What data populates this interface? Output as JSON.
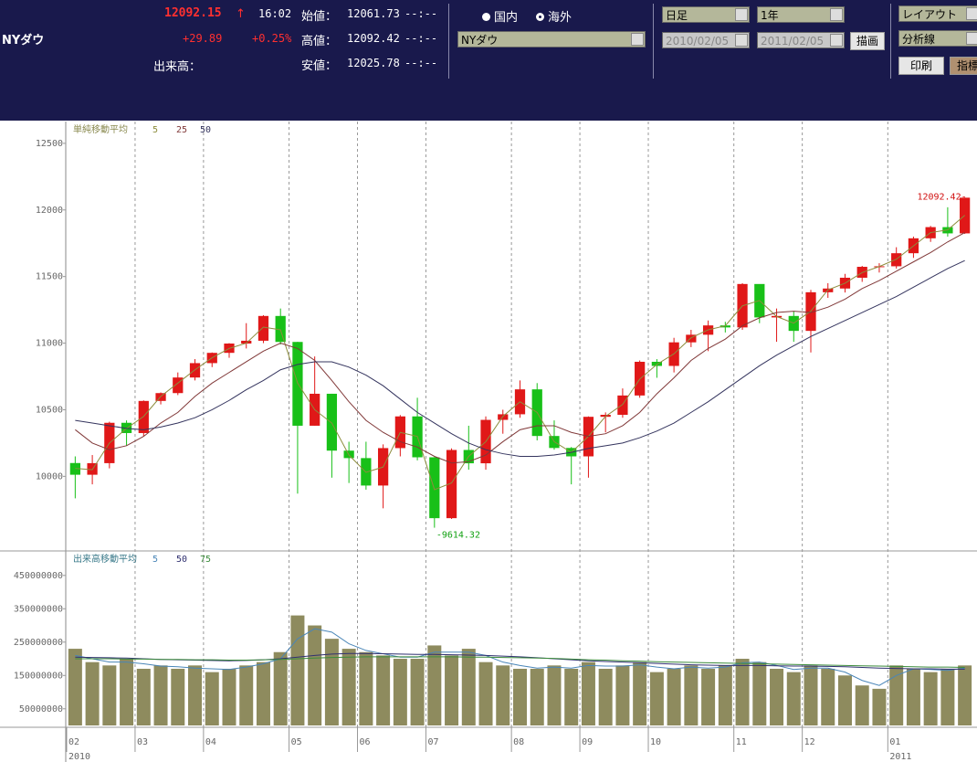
{
  "header": {
    "symbol": "NYダウ",
    "price": "12092.15",
    "arrow": "↑",
    "time": "16:02",
    "change": "+29.89",
    "change_pct": "+0.25%",
    "volume_label": "出来高：",
    "ohlc": [
      {
        "label": "始値：",
        "value": "12061.73",
        "time": "--:--"
      },
      {
        "label": "高値：",
        "value": "12092.42",
        "time": "--:--"
      },
      {
        "label": "安値：",
        "value": "12025.78",
        "time": "--:--"
      }
    ]
  },
  "controls": {
    "radio_domestic": "国内",
    "radio_overseas": "海外",
    "index_select": "NYダウ",
    "period_select": "日足",
    "range_select": "1年",
    "date_from": "2010/02/05",
    "date_to": "2011/02/05",
    "draw_button": "描画",
    "layout_select": "レイアウト",
    "analysis_select": "分析線",
    "print_button": "印刷",
    "indicator_button": "指標"
  },
  "chart_data": [
    {
      "type": "candlestick",
      "legend_title": "単純移動平均",
      "up_color": "#e01818",
      "down_color": "#18c018",
      "high_label": "12092.42-",
      "low_label": "-9614.32",
      "categories": [
        "02",
        null,
        null,
        null,
        "03",
        null,
        null,
        null,
        "04",
        null,
        null,
        null,
        null,
        "05",
        null,
        null,
        null,
        "06",
        null,
        null,
        null,
        "07",
        null,
        null,
        null,
        null,
        "08",
        null,
        null,
        null,
        "09",
        null,
        null,
        null,
        "10",
        null,
        null,
        null,
        null,
        "11",
        null,
        null,
        null,
        "12",
        null,
        null,
        null,
        null,
        "01",
        null,
        null,
        null,
        null
      ],
      "years": [
        "2010",
        null,
        null,
        null,
        null,
        null,
        null,
        null,
        null,
        null,
        null,
        null,
        null,
        null,
        null,
        null,
        null,
        null,
        null,
        null,
        null,
        null,
        null,
        null,
        null,
        null,
        null,
        null,
        null,
        null,
        null,
        null,
        null,
        null,
        null,
        null,
        null,
        null,
        null,
        null,
        null,
        null,
        null,
        null,
        null,
        null,
        null,
        null,
        "2011",
        null,
        null,
        null,
        null
      ],
      "open": [
        10100,
        10012,
        10099,
        10402,
        10325,
        10566,
        10625,
        10742,
        10850,
        10927,
        10997,
        11018,
        11204,
        11009,
        10380,
        10620,
        10193,
        10137,
        9931,
        10212,
        10450,
        10143,
        9686,
        10198,
        10098,
        10424,
        10466,
        10653,
        10303,
        10213,
        10150,
        10447,
        10462,
        10607,
        10860,
        10829,
        11006,
        11063,
        11133,
        11118,
        11444,
        11193,
        11204,
        11092,
        11382,
        11410,
        11491,
        11573,
        11577,
        11675,
        11787,
        11871,
        11824
      ],
      "high": [
        10150,
        10160,
        10410,
        10420,
        10570,
        10630,
        10780,
        10880,
        10930,
        11000,
        11150,
        11210,
        11260,
        11010,
        10900,
        10620,
        10260,
        10260,
        10240,
        10460,
        10590,
        10145,
        10210,
        10380,
        10450,
        10500,
        10720,
        10700,
        10420,
        10220,
        10450,
        10480,
        10660,
        10870,
        10880,
        11040,
        11100,
        11170,
        11160,
        11450,
        11440,
        11260,
        11240,
        11400,
        11450,
        11520,
        11580,
        11600,
        11720,
        11800,
        11880,
        12020,
        12092.42
      ],
      "low": [
        9835,
        9940,
        10060,
        10230,
        10300,
        10540,
        10610,
        10720,
        10820,
        10890,
        10960,
        11000,
        10990,
        9870,
        10380,
        9990,
        9950,
        9900,
        9760,
        10150,
        10120,
        9614.32,
        9680,
        10050,
        10050,
        10320,
        10440,
        10270,
        10200,
        9940,
        9990,
        10330,
        10440,
        10590,
        10740,
        10780,
        10970,
        10940,
        11080,
        11100,
        11150,
        11010,
        11010,
        10930,
        11340,
        11380,
        11460,
        11530,
        11560,
        11640,
        11760,
        11800,
        11820
      ],
      "close": [
        10012,
        10099,
        10402,
        10325,
        10566,
        10625,
        10742,
        10850,
        10927,
        10997,
        11018,
        11204,
        11009,
        10380,
        10620,
        10193,
        10137,
        9931,
        10212,
        10450,
        10143,
        9686,
        10198,
        10098,
        10424,
        10466,
        10653,
        10303,
        10213,
        10150,
        10447,
        10462,
        10607,
        10860,
        10829,
        11006,
        11063,
        11133,
        11118,
        11444,
        11193,
        11204,
        11092,
        11382,
        11410,
        11491,
        11573,
        11577,
        11675,
        11787,
        11871,
        11824,
        12092
      ],
      "series": [
        {
          "name": "5",
          "color": "#8c8c3c",
          "values": [
            10060,
            10050,
            10250,
            10360,
            10450,
            10600,
            10700,
            10800,
            10890,
            10960,
            11000,
            11120,
            11100,
            10700,
            10500,
            10400,
            10160,
            10030,
            10070,
            10330,
            10300,
            9900,
            9950,
            10150,
            10260,
            10450,
            10560,
            10480,
            10260,
            10180,
            10300,
            10450,
            10540,
            10730,
            10840,
            10920,
            11040,
            11100,
            11130,
            11280,
            11320,
            11200,
            11150,
            11240,
            11400,
            11450,
            11530,
            11575,
            11630,
            11730,
            11830,
            11850,
            11960
          ]
        },
        {
          "name": "25",
          "color": "#803838",
          "values": [
            10350,
            10250,
            10200,
            10230,
            10300,
            10400,
            10480,
            10600,
            10700,
            10780,
            10860,
            10940,
            11000,
            10960,
            10870,
            10720,
            10560,
            10420,
            10330,
            10260,
            10220,
            10150,
            10100,
            10110,
            10160,
            10260,
            10350,
            10380,
            10380,
            10330,
            10300,
            10320,
            10380,
            10480,
            10620,
            10740,
            10870,
            10960,
            11030,
            11130,
            11190,
            11230,
            11240,
            11230,
            11270,
            11330,
            11410,
            11470,
            11540,
            11610,
            11680,
            11760,
            11830
          ]
        },
        {
          "name": "50",
          "color": "#34345e",
          "values": [
            10420,
            10400,
            10380,
            10360,
            10350,
            10370,
            10400,
            10440,
            10500,
            10570,
            10650,
            10720,
            10800,
            10840,
            10860,
            10860,
            10820,
            10760,
            10680,
            10580,
            10480,
            10400,
            10320,
            10250,
            10200,
            10170,
            10150,
            10150,
            10160,
            10180,
            10210,
            10230,
            10250,
            10290,
            10340,
            10400,
            10480,
            10560,
            10650,
            10740,
            10830,
            10910,
            10980,
            11050,
            11110,
            11170,
            11230,
            11290,
            11350,
            11420,
            11490,
            11560,
            11620
          ]
        }
      ],
      "ylim": [
        9440,
        12650
      ],
      "yticks": [
        10000,
        10500,
        11000,
        11500,
        12000,
        12500
      ]
    },
    {
      "type": "bar",
      "legend_title": "出来高移動平均",
      "color": "#8e8b5e",
      "values": [
        230000000.0,
        190000000.0,
        180000000.0,
        200000000.0,
        170000000.0,
        180000000.0,
        170000000.0,
        180000000.0,
        160000000.0,
        170000000.0,
        180000000.0,
        190000000.0,
        220000000.0,
        330000000.0,
        300000000.0,
        260000000.0,
        230000000.0,
        220000000.0,
        210000000.0,
        200000000.0,
        200000000.0,
        240000000.0,
        210000000.0,
        230000000.0,
        190000000.0,
        180000000.0,
        170000000.0,
        170000000.0,
        180000000.0,
        170000000.0,
        190000000.0,
        170000000.0,
        180000000.0,
        190000000.0,
        160000000.0,
        170000000.0,
        180000000.0,
        170000000.0,
        180000000.0,
        200000000.0,
        190000000.0,
        170000000.0,
        160000000.0,
        180000000.0,
        170000000.0,
        150000000.0,
        120000000.0,
        110000000.0,
        180000000.0,
        170000000.0,
        160000000.0,
        170000000.0,
        180000000.0
      ],
      "series": [
        {
          "name": "5",
          "color": "#4a86b8",
          "values": [
            210000000.0,
            200000000.0,
            190000000.0,
            190000000.0,
            185000000.0,
            178000000.0,
            176000000.0,
            172000000.0,
            170000000.0,
            168000000.0,
            175000000.0,
            185000000.0,
            200000000.0,
            260000000.0,
            290000000.0,
            280000000.0,
            245000000.0,
            225000000.0,
            215000000.0,
            205000000.0,
            205000000.0,
            220000000.0,
            220000000.0,
            220000000.0,
            210000000.0,
            190000000.0,
            180000000.0,
            172000000.0,
            175000000.0,
            172000000.0,
            180000000.0,
            178000000.0,
            178000000.0,
            182000000.0,
            175000000.0,
            170000000.0,
            175000000.0,
            172000000.0,
            175000000.0,
            188000000.0,
            190000000.0,
            180000000.0,
            168000000.0,
            172000000.0,
            172000000.0,
            160000000.0,
            135000000.0,
            120000000.0,
            150000000.0,
            170000000.0,
            168000000.0,
            165000000.0,
            172000000.0
          ]
        },
        {
          "name": "50",
          "color": "#303070",
          "values": [
            205000000.0,
            204000000.0,
            203000000.0,
            202000000.0,
            200000000.0,
            198000000.0,
            197000000.0,
            196000000.0,
            195000000.0,
            194000000.0,
            195000000.0,
            197000000.0,
            200000000.0,
            205000000.0,
            210000000.0,
            214000000.0,
            216000000.0,
            216000000.0,
            215000000.0,
            214000000.0,
            213000000.0,
            213000000.0,
            212000000.0,
            211000000.0,
            210000000.0,
            208000000.0,
            206000000.0,
            203000000.0,
            200000000.0,
            197000000.0,
            194000000.0,
            192000000.0,
            190000000.0,
            188000000.0,
            186000000.0,
            184000000.0,
            182000000.0,
            181000000.0,
            180000000.0,
            180000000.0,
            180000000.0,
            179000000.0,
            178000000.0,
            178000000.0,
            177000000.0,
            176000000.0,
            174000000.0,
            172000000.0,
            171000000.0,
            170000000.0,
            170000000.0,
            169000000.0,
            169000000.0
          ]
        },
        {
          "name": "75",
          "color": "#3c8c3c",
          "values": [
            200000000.0,
            200000000.0,
            200000000.0,
            199000000.0,
            199000000.0,
            198000000.0,
            198000000.0,
            197000000.0,
            197000000.0,
            196000000.0,
            196000000.0,
            197000000.0,
            198000000.0,
            200000000.0,
            202000000.0,
            204000000.0,
            205000000.0,
            206000000.0,
            206000000.0,
            206000000.0,
            206000000.0,
            206000000.0,
            206000000.0,
            205000000.0,
            205000000.0,
            204000000.0,
            203000000.0,
            202000000.0,
            201000000.0,
            199000000.0,
            197000000.0,
            196000000.0,
            194000000.0,
            193000000.0,
            191000000.0,
            190000000.0,
            189000000.0,
            188000000.0,
            187000000.0,
            186000000.0,
            185000000.0,
            184000000.0,
            183000000.0,
            182000000.0,
            181000000.0,
            180000000.0,
            179000000.0,
            178000000.0,
            177000000.0,
            176000000.0,
            175000000.0,
            175000000.0,
            174000000.0
          ]
        }
      ],
      "ylim": [
        0,
        518000000
      ],
      "yticks": [
        50000000,
        150000000,
        250000000,
        350000000,
        450000000
      ]
    }
  ]
}
